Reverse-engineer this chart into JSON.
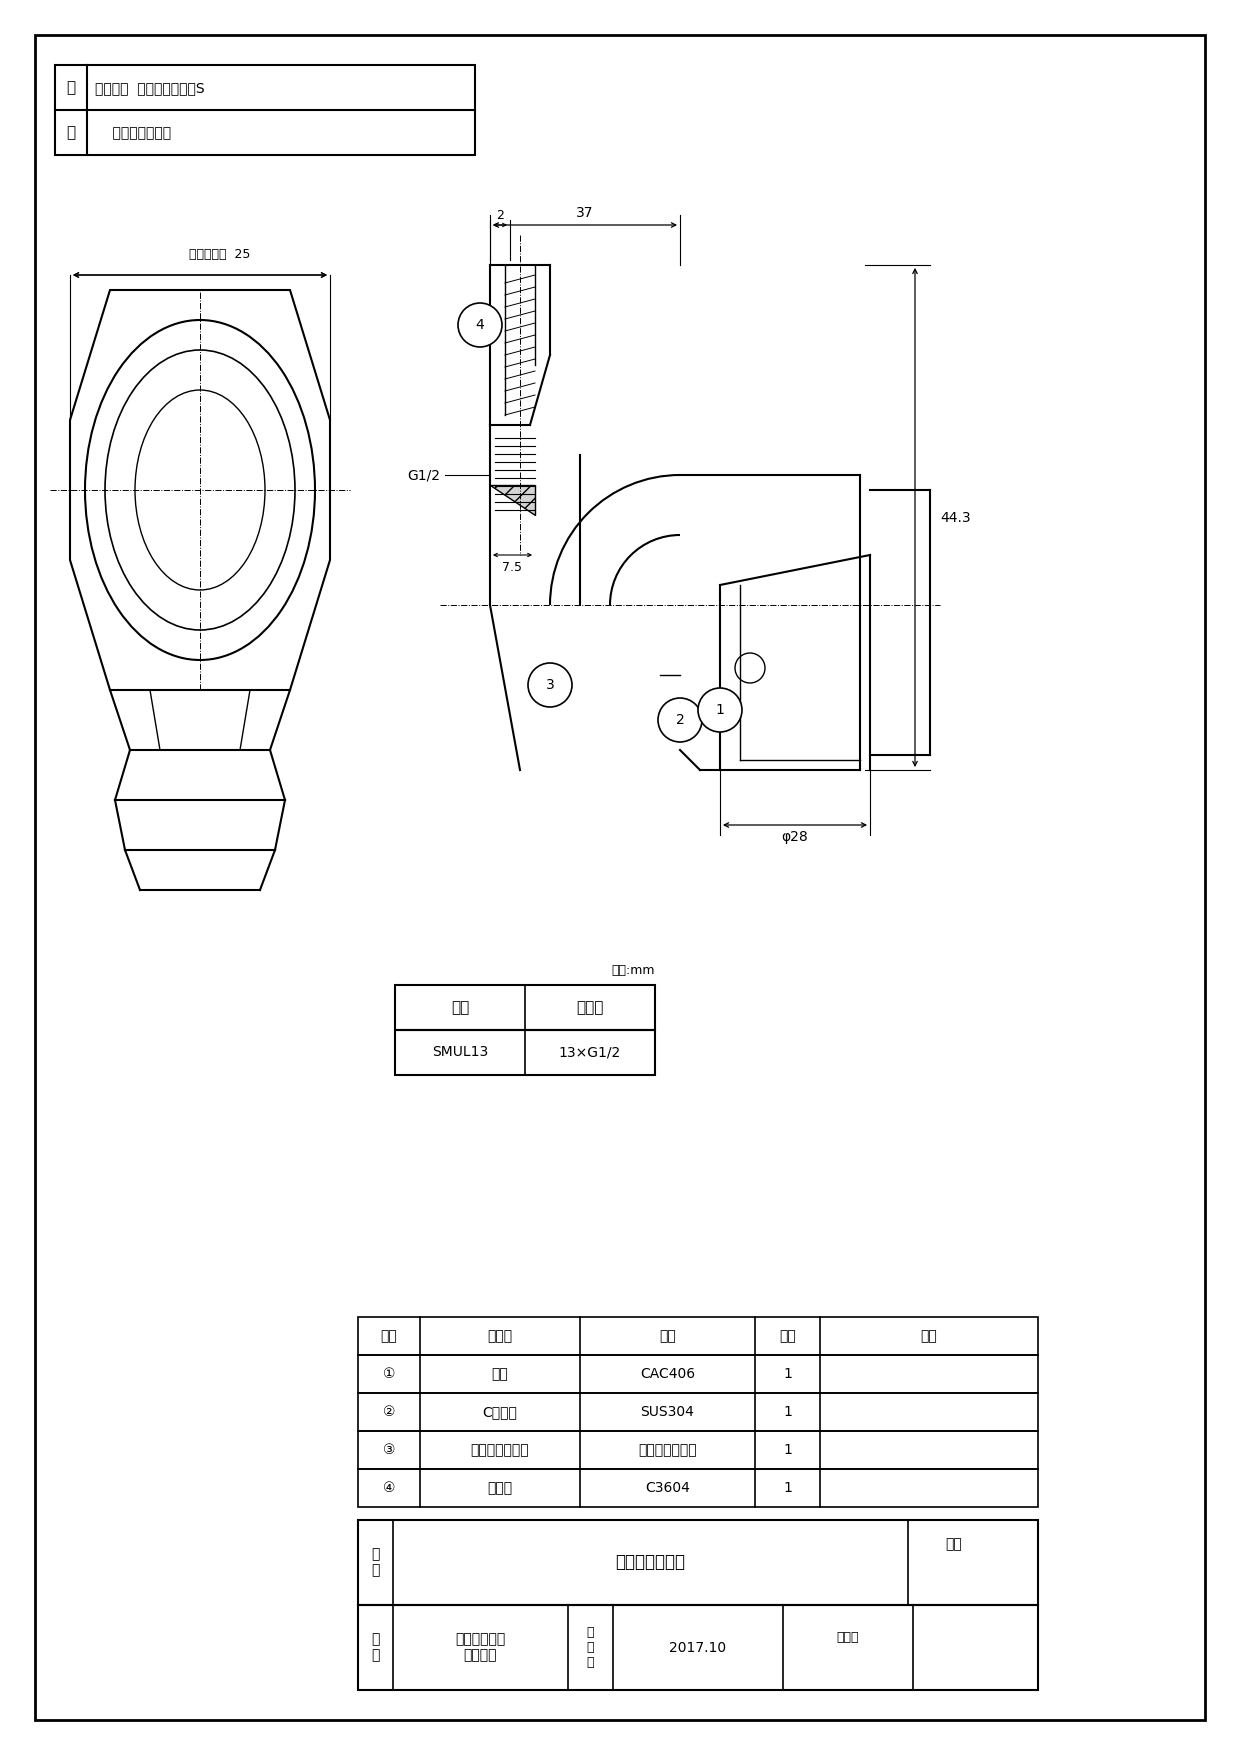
{
  "page_bg": "#ffffff",
  "title_content1": "エスロン  エスロカチットS",
  "title_content2": "    ユニオンエルボ",
  "unit_label": "単位:mm",
  "table1_headers": [
    "品番",
    "呼び径"
  ],
  "table1_rows": [
    [
      "SMUL13",
      "13×G1/2"
    ]
  ],
  "table2_headers": [
    "番号",
    "部品名",
    "材質",
    "個数",
    "備考"
  ],
  "table2_rows": [
    [
      "①",
      "本体",
      "CAC406",
      "1",
      ""
    ],
    [
      "②",
      "Cリング",
      "SUS304",
      "1",
      ""
    ],
    [
      "③",
      "シートパッキン",
      "ノンアスベスト",
      "1",
      ""
    ],
    [
      "④",
      "ナット",
      "C3604",
      "1",
      ""
    ]
  ],
  "product_name": "ユニオンエルボ",
  "fig_label": "図番",
  "maker_name": "積水化学工業\n株式会社",
  "date_label": "年\n月\n日",
  "date_value": "2017.10",
  "approval_label": "承認印",
  "dim_37": "37",
  "dim_2": "2",
  "dim_g12": "G1/2",
  "dim_75": "7.5",
  "dim_443": "44.3",
  "dim_28": "φ28",
  "dim_hex": "六觓二面幅  25",
  "callout_1": "1",
  "callout_2": "2",
  "callout_3": "3",
  "callout_4": "4"
}
